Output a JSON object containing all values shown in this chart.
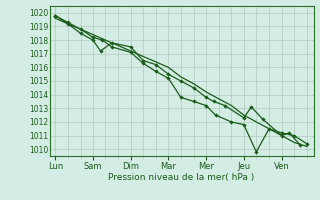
{
  "title": "",
  "xlabel": "Pression niveau de la mer( hPa )",
  "ylim": [
    1009.5,
    1020.5
  ],
  "yticks": [
    1010,
    1011,
    1012,
    1013,
    1014,
    1015,
    1016,
    1017,
    1018,
    1019,
    1020
  ],
  "xtick_labels": [
    "Lun",
    "Sam",
    "Dim",
    "Mar",
    "Mer",
    "Jeu",
    "Ven"
  ],
  "xtick_positions": [
    0,
    1,
    2,
    3,
    4,
    5,
    6
  ],
  "background_color": "#d4ede4",
  "grid_color": "#b8cfc8",
  "line_color": "#1a5c1a",
  "spine_color": "#2a6e2a",
  "series1_x": [
    0.0,
    0.33,
    0.67,
    1.0,
    1.2,
    1.5,
    2.0,
    2.33,
    2.67,
    3.0,
    3.33,
    3.67,
    4.0,
    4.2,
    4.5,
    5.0,
    5.2,
    5.5,
    6.0,
    6.2,
    6.5
  ],
  "series1_y": [
    1019.8,
    1019.2,
    1018.5,
    1018.0,
    1017.2,
    1017.8,
    1017.5,
    1016.5,
    1016.2,
    1015.5,
    1015.0,
    1014.5,
    1013.8,
    1013.5,
    1013.2,
    1012.3,
    1013.1,
    1012.2,
    1011.0,
    1011.2,
    1010.3
  ],
  "series2_x": [
    0.0,
    0.33,
    0.67,
    1.0,
    1.25,
    1.5,
    2.0,
    2.33,
    2.67,
    3.0,
    3.33,
    3.67,
    4.0,
    4.25,
    4.67,
    5.0,
    5.33,
    5.67,
    6.0,
    6.33,
    6.67
  ],
  "series2_y": [
    1019.8,
    1019.3,
    1018.8,
    1018.2,
    1018.0,
    1017.5,
    1017.1,
    1016.3,
    1015.7,
    1015.2,
    1013.8,
    1013.5,
    1013.2,
    1012.5,
    1012.0,
    1011.8,
    1009.8,
    1011.5,
    1011.2,
    1011.0,
    1010.4
  ],
  "series3_x": [
    0.0,
    0.33,
    0.67,
    1.0,
    1.33,
    1.67,
    2.0,
    2.33,
    2.67,
    3.0,
    3.33,
    3.67,
    4.0,
    4.33,
    4.67,
    5.0,
    5.33,
    5.67,
    6.0,
    6.33,
    6.67
  ],
  "series3_y": [
    1019.6,
    1019.2,
    1018.8,
    1018.4,
    1018.0,
    1017.6,
    1017.2,
    1016.8,
    1016.4,
    1016.0,
    1015.3,
    1014.8,
    1014.2,
    1013.7,
    1013.2,
    1012.5,
    1012.0,
    1011.5,
    1011.0,
    1010.5,
    1010.2
  ],
  "xlim": [
    -0.15,
    6.85
  ],
  "minor_x_ticks": [
    0.33,
    0.67,
    1.33,
    1.67,
    2.33,
    2.67,
    3.33,
    3.67,
    4.33,
    4.67,
    5.33,
    5.67,
    6.33,
    6.67
  ]
}
